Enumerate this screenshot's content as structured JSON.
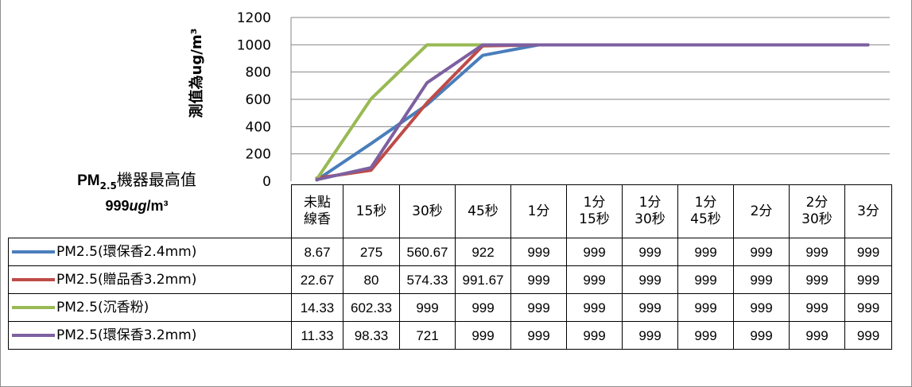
{
  "chart_data": {
    "type": "line",
    "categories": [
      "未點\n線香",
      "15秒",
      "30秒",
      "45秒",
      "1分",
      "1分\n15秒",
      "1分\n30秒",
      "1分\n45秒",
      "2分",
      "2分\n30秒",
      "3分"
    ],
    "ylabel": "測值為ug/m³",
    "ylim": [
      0,
      1200
    ],
    "yticks": [
      "0",
      "200",
      "400",
      "600",
      "800",
      "1000",
      "1200"
    ],
    "grid": true,
    "legend": "data-table",
    "series": [
      {
        "name": "PM2.5(環保香2.4mm)",
        "color": "#4a7ebb",
        "values": [
          8.67,
          275,
          560.67,
          922,
          999,
          999,
          999,
          999,
          999,
          999,
          999
        ],
        "labels": [
          "8.67",
          "275",
          "560.67",
          "922",
          "999",
          "999",
          "999",
          "999",
          "999",
          "999",
          "999"
        ]
      },
      {
        "name": "PM2.5(贈品香3.2mm)",
        "color": "#be4b48",
        "values": [
          22.67,
          80,
          574.33,
          991.67,
          999,
          999,
          999,
          999,
          999,
          999,
          999
        ],
        "labels": [
          "22.67",
          "80",
          "574.33",
          "991.67",
          "999",
          "999",
          "999",
          "999",
          "999",
          "999",
          "999"
        ]
      },
      {
        "name": "PM2.5(沉香粉)",
        "color": "#98b954",
        "values": [
          14.33,
          602.33,
          999,
          999,
          999,
          999,
          999,
          999,
          999,
          999,
          999
        ],
        "labels": [
          "14.33",
          "602.33",
          "999",
          "999",
          "999",
          "999",
          "999",
          "999",
          "999",
          "999",
          "999"
        ]
      },
      {
        "name": "PM2.5(環保香3.2mm)",
        "color": "#7d60a0",
        "values": [
          11.33,
          98.33,
          721,
          999,
          999,
          999,
          999,
          999,
          999,
          999,
          999
        ],
        "labels": [
          "11.33",
          "98.33",
          "721",
          "999",
          "999",
          "999",
          "999",
          "999",
          "999",
          "999",
          "999"
        ]
      }
    ]
  },
  "note": {
    "pm_prefix": "PM",
    "pm_sub": "2.5",
    "label": "機器最高值",
    "value_prefix": "999",
    "value_unit_italic": "ug",
    "value_suffix": "/m³"
  }
}
